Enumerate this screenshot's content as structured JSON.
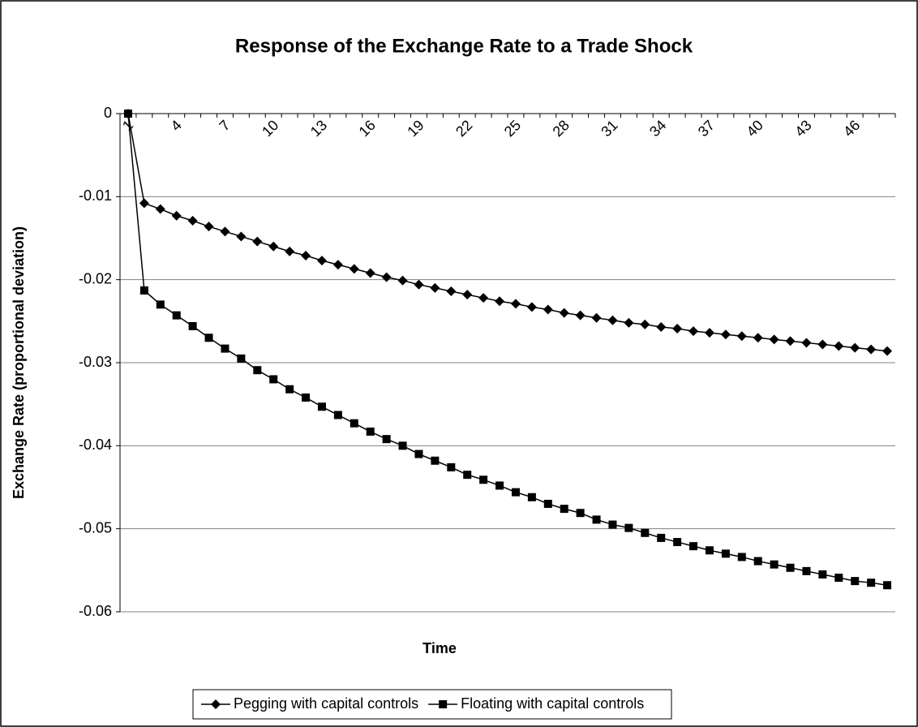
{
  "chart_data": {
    "type": "line",
    "title": "Response of the Exchange Rate to a Trade Shock",
    "x_label": "Time",
    "y_label": "Exchange Rate (proportional deviation)",
    "categories": [
      1,
      null,
      null,
      4,
      null,
      null,
      7,
      null,
      null,
      10,
      null,
      null,
      13,
      null,
      null,
      16,
      null,
      null,
      19,
      null,
      null,
      22,
      null,
      null,
      25,
      null,
      null,
      28,
      null,
      null,
      31,
      null,
      null,
      34,
      null,
      null,
      37,
      null,
      null,
      40,
      null,
      null,
      43,
      null,
      null,
      46,
      null,
      null
    ],
    "series": [
      {
        "name": "Pegging with capital controls",
        "color": "#000000",
        "marker": "diamond",
        "values": [
          0,
          -0.0108,
          -0.0115,
          -0.0123,
          -0.0129,
          -0.0136,
          -0.0142,
          -0.0148,
          -0.0154,
          -0.016,
          -0.0166,
          -0.0171,
          -0.0177,
          -0.0182,
          -0.0187,
          -0.0192,
          -0.0197,
          -0.0201,
          -0.0206,
          -0.021,
          -0.0214,
          -0.0218,
          -0.0222,
          -0.0226,
          -0.0229,
          -0.0233,
          -0.0236,
          -0.024,
          -0.0243,
          -0.0246,
          -0.0249,
          -0.0252,
          -0.0254,
          -0.0257,
          -0.0259,
          -0.0262,
          -0.0264,
          -0.0266,
          -0.0268,
          -0.027,
          -0.0272,
          -0.0274,
          -0.0276,
          -0.0278,
          -0.028,
          -0.0282,
          -0.0284,
          -0.0286
        ]
      },
      {
        "name": "Floating with capital controls",
        "color": "#000000",
        "marker": "square",
        "values": [
          0,
          -0.0213,
          -0.023,
          -0.0243,
          -0.0256,
          -0.027,
          -0.0283,
          -0.0295,
          -0.0309,
          -0.032,
          -0.0332,
          -0.0342,
          -0.0353,
          -0.0363,
          -0.0373,
          -0.0383,
          -0.0392,
          -0.04,
          -0.041,
          -0.0418,
          -0.0426,
          -0.0435,
          -0.0441,
          -0.0448,
          -0.0456,
          -0.0462,
          -0.047,
          -0.0476,
          -0.0481,
          -0.0489,
          -0.0495,
          -0.0499,
          -0.0505,
          -0.0511,
          -0.0516,
          -0.0521,
          -0.0526,
          -0.053,
          -0.0534,
          -0.0539,
          -0.0543,
          -0.0547,
          -0.0551,
          -0.0555,
          -0.0559,
          -0.0563,
          -0.0565,
          -0.0568
        ]
      }
    ],
    "ylim": [
      -0.06,
      0
    ],
    "yticks": [
      0,
      -0.01,
      -0.02,
      -0.03,
      -0.04,
      -0.05,
      -0.06
    ],
    "grid": true,
    "legend": "bottom"
  }
}
